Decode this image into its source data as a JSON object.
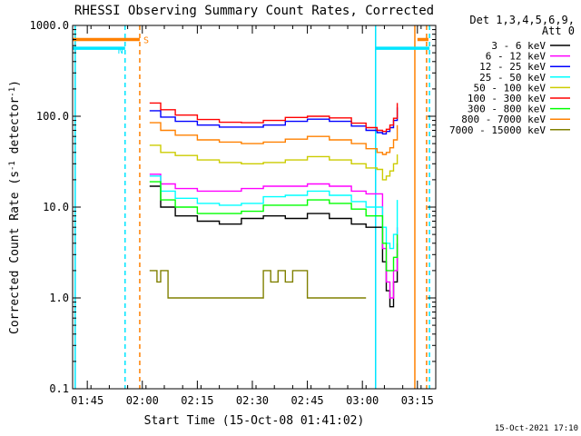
{
  "chart_data": {
    "type": "line",
    "title": "RHESSI Observing Summary Count Rates, Corrected",
    "xlabel": "Start Time (15-Oct-08 01:41:02)",
    "ylabel": "Corrected Count Rate (s",
    "ylabel_sup": "-1",
    "ylabel_mid": " detector",
    "ylabel_end": ")",
    "footer": "15-Oct-2021 17:10",
    "x_unit": "minutes after 01:41:02 UT",
    "xlim": [
      0,
      99
    ],
    "ylim": [
      0.1,
      1000
    ],
    "yscale": "log",
    "x_ticks": [
      {
        "value": 4,
        "label": "01:45"
      },
      {
        "value": 19,
        "label": "02:00"
      },
      {
        "value": 34,
        "label": "02:15"
      },
      {
        "value": 49,
        "label": "02:30"
      },
      {
        "value": 64,
        "label": "02:45"
      },
      {
        "value": 79,
        "label": "03:00"
      },
      {
        "value": 94,
        "label": "03:15"
      }
    ],
    "y_ticks": [
      {
        "value": 0.1,
        "label": "0.1"
      },
      {
        "value": 1,
        "label": "1.0"
      },
      {
        "value": 10,
        "label": "10.0"
      },
      {
        "value": 100,
        "label": "100.0"
      },
      {
        "value": 1000,
        "label": "1000.0"
      }
    ],
    "legend": {
      "placement": "top-right",
      "header": [
        "Det 1,3,4,5,6,9,",
        "Att 0"
      ]
    },
    "series": [
      {
        "name": "3 - 6 keV",
        "color": "#000000",
        "x": [
          21,
          24,
          28,
          34,
          40,
          46,
          52,
          58,
          64,
          70,
          76,
          80,
          83,
          84.5,
          85.5,
          86.5,
          87.5,
          88.5
        ],
        "y": [
          17,
          10,
          8,
          7,
          6.5,
          7.5,
          8,
          7.5,
          8.5,
          7.5,
          6.5,
          6,
          6,
          2.5,
          1.2,
          0.8,
          1.5,
          4
        ]
      },
      {
        "name": "6 - 12 keV",
        "color": "#ff00ff",
        "x": [
          21,
          24,
          28,
          34,
          40,
          46,
          52,
          58,
          64,
          70,
          76,
          80,
          83,
          84.5,
          85.5,
          86.5,
          87.5,
          88.5
        ],
        "y": [
          23,
          18,
          16,
          15,
          15,
          16,
          17,
          17,
          18,
          17,
          15,
          14,
          14,
          3.5,
          1.5,
          1,
          2,
          6
        ]
      },
      {
        "name": "12 - 25 keV",
        "color": "#0000ff",
        "x": [
          21,
          24,
          28,
          34,
          40,
          46,
          52,
          58,
          64,
          70,
          76,
          80,
          83,
          84.5,
          85.5,
          86.5,
          87.5,
          88.5
        ],
        "y": [
          115,
          98,
          88,
          80,
          76,
          76,
          80,
          88,
          93,
          88,
          78,
          70,
          66,
          64,
          68,
          75,
          90,
          125
        ]
      },
      {
        "name": "25 - 50 keV",
        "color": "#00ffff",
        "x": [
          21,
          24,
          28,
          34,
          40,
          46,
          52,
          58,
          64,
          70,
          76,
          80,
          83,
          84.5,
          85.5,
          86.5,
          87.5,
          88.5
        ],
        "y": [
          22,
          15,
          12.5,
          11,
          10.5,
          11,
          13,
          13.5,
          15,
          13.5,
          11.5,
          10,
          10,
          6,
          4,
          3.5,
          5,
          12
        ]
      },
      {
        "name": "50 - 100 keV",
        "color": "#cccc00",
        "x": [
          21,
          24,
          28,
          34,
          40,
          46,
          52,
          58,
          64,
          70,
          76,
          80,
          83,
          84.5,
          85.5,
          86.5,
          87.5,
          88.5
        ],
        "y": [
          48,
          40,
          37,
          33,
          31,
          30,
          31,
          33,
          36,
          33,
          30,
          27,
          26,
          20,
          22,
          25,
          30,
          38
        ]
      },
      {
        "name": "100 - 300 keV",
        "color": "#ff0000",
        "x": [
          21,
          24,
          28,
          34,
          40,
          46,
          52,
          58,
          64,
          70,
          76,
          80,
          83,
          84.5,
          85.5,
          86.5,
          87.5,
          88.5
        ],
        "y": [
          140,
          118,
          103,
          92,
          86,
          85,
          90,
          97,
          100,
          96,
          84,
          75,
          70,
          68,
          72,
          80,
          95,
          140
        ]
      },
      {
        "name": "300 - 800 keV",
        "color": "#00ff00",
        "x": [
          21,
          24,
          28,
          34,
          40,
          46,
          52,
          58,
          64,
          70,
          76,
          80,
          83,
          84.5,
          85.5,
          86.5,
          87.5,
          88.5
        ],
        "y": [
          19,
          12,
          10,
          8.5,
          8.5,
          9,
          10.5,
          10.5,
          12,
          11,
          9.5,
          8,
          8,
          4,
          2,
          2,
          2.8,
          5
        ]
      },
      {
        "name": "800 - 7000 keV",
        "color": "#ff8000",
        "x": [
          21,
          24,
          28,
          34,
          40,
          46,
          52,
          58,
          64,
          70,
          76,
          80,
          83,
          84.5,
          85.5,
          86.5,
          87.5,
          88.5
        ],
        "y": [
          85,
          70,
          62,
          55,
          52,
          50,
          52,
          56,
          60,
          55,
          50,
          44,
          40,
          38,
          40,
          45,
          55,
          80
        ]
      },
      {
        "name": "7000 - 15000 keV",
        "color": "#808000",
        "x": [
          21,
          22,
          23,
          24,
          26,
          28,
          34,
          40,
          46,
          50,
          52,
          54,
          56,
          58,
          60,
          64,
          66,
          68,
          70,
          72,
          74,
          76,
          78,
          80
        ],
        "y": [
          2,
          2,
          1.5,
          2,
          1,
          1,
          1,
          1,
          1,
          1,
          2,
          1.5,
          2,
          1.5,
          2,
          1,
          1,
          1,
          1,
          1,
          1,
          1,
          1,
          1
        ]
      }
    ],
    "vertical_lines": [
      {
        "x": 0.7,
        "color": "#00e5ff",
        "style": "solid"
      },
      {
        "x": 14.3,
        "color": "#00e5ff",
        "style": "dashed"
      },
      {
        "x": 18.3,
        "color": "#ff8000",
        "style": "dashed"
      },
      {
        "x": 82.6,
        "color": "#00e5ff",
        "style": "solid"
      },
      {
        "x": 93.3,
        "color": "#ff8000",
        "style": "solid"
      },
      {
        "x": 96.5,
        "color": "#ff8000",
        "style": "dashed"
      },
      {
        "x": 97.3,
        "color": "#00e5ff",
        "style": "dashed"
      }
    ],
    "flag_bars": [
      {
        "label": "S",
        "color": "#ff8000",
        "y": 700,
        "segments": [
          [
            0,
            18.3
          ],
          [
            94,
            97
          ]
        ]
      },
      {
        "label": "N",
        "color": "#00e5ff",
        "y": 560,
        "segments": [
          [
            0,
            14.3
          ],
          [
            82.6,
            97.3
          ]
        ]
      }
    ]
  }
}
